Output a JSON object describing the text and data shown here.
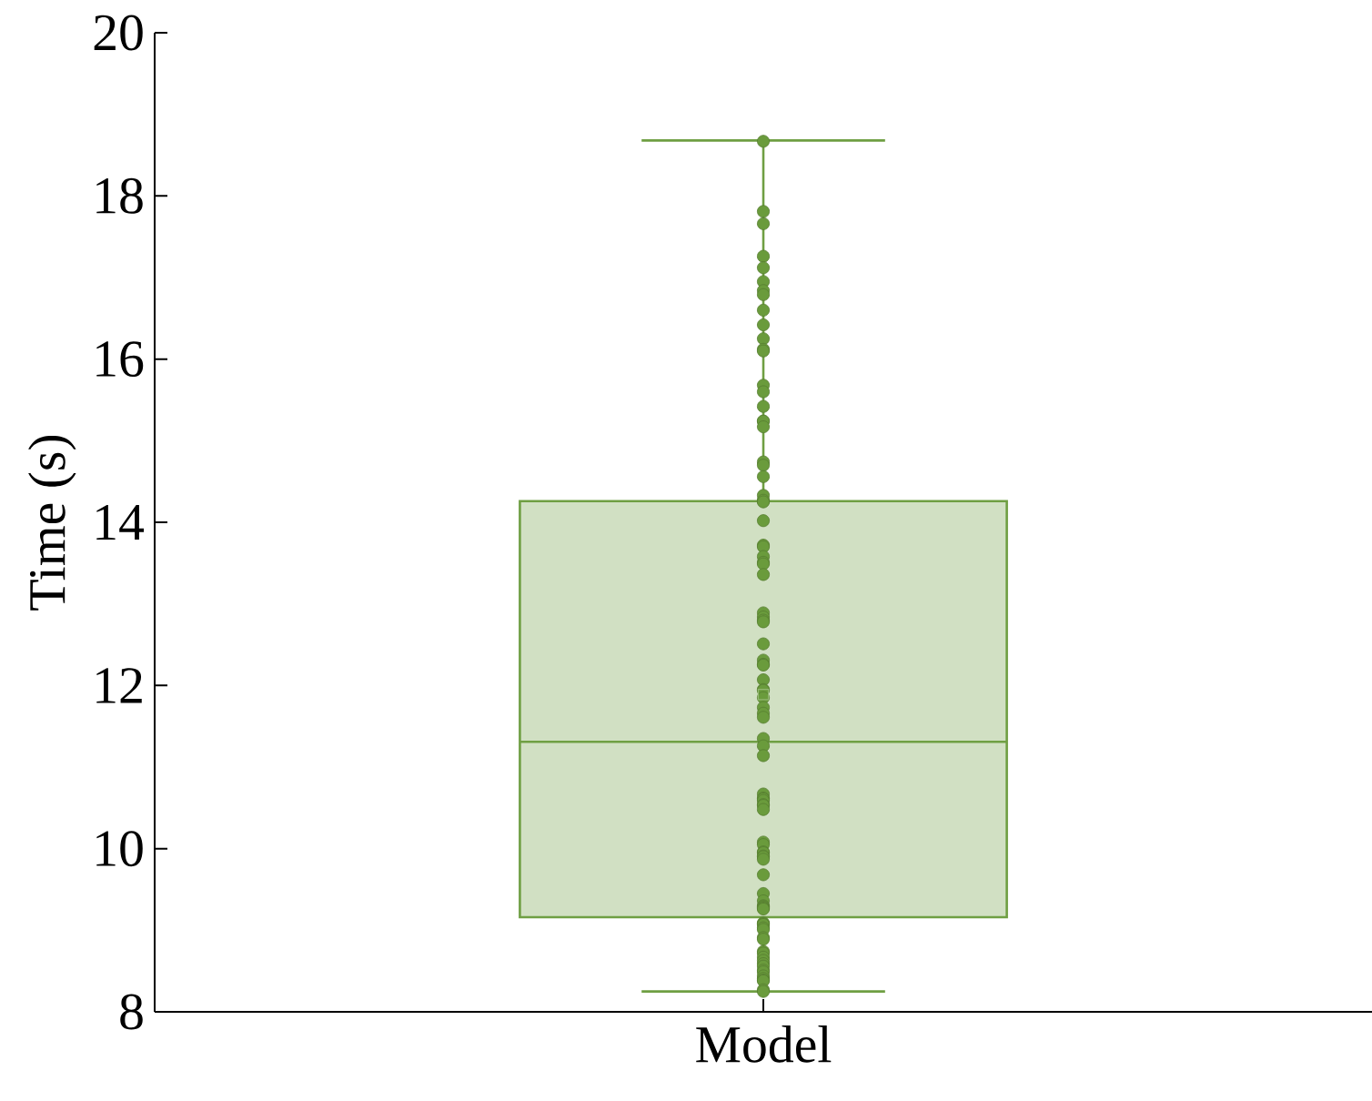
{
  "chart_data": {
    "type": "box",
    "ylabel": "Time (s)",
    "categories": [
      "Model"
    ],
    "ylim": [
      8,
      20
    ],
    "yticks": [
      8,
      10,
      12,
      14,
      16,
      18,
      20
    ],
    "series": [
      {
        "color": "#6f9f43",
        "boxes": [
          {
            "low": 8.25,
            "q1": 9.16,
            "median": 11.31,
            "q3": 14.26,
            "high": 18.68,
            "mean": 11.89
          }
        ]
      },
      {
        "type": "scatter",
        "color": "#6a9b3c",
        "marker": "circle",
        "x": [
          "Model",
          "Model",
          "Model",
          "Model",
          "Model",
          "Model",
          "Model",
          "Model",
          "Model",
          "Model",
          "Model",
          "Model",
          "Model",
          "Model",
          "Model",
          "Model",
          "Model",
          "Model",
          "Model",
          "Model",
          "Model",
          "Model",
          "Model",
          "Model",
          "Model",
          "Model",
          "Model",
          "Model",
          "Model",
          "Model",
          "Model",
          "Model",
          "Model",
          "Model",
          "Model",
          "Model",
          "Model",
          "Model",
          "Model",
          "Model",
          "Model",
          "Model",
          "Model",
          "Model",
          "Model",
          "Model",
          "Model",
          "Model",
          "Model",
          "Model",
          "Model",
          "Model",
          "Model",
          "Model",
          "Model",
          "Model",
          "Model",
          "Model",
          "Model",
          "Model",
          "Model",
          "Model",
          "Model",
          "Model",
          "Model",
          "Model",
          "Model",
          "Model",
          "Model",
          "Model",
          "Model",
          "Model",
          "Model",
          "Model",
          "Model",
          "Model",
          "Model",
          "Model",
          "Model",
          "Model",
          "Model",
          "Model",
          "Model",
          "Model",
          "Model",
          "Model",
          "Model",
          "Model",
          "Model",
          "Model",
          "Model",
          "Model",
          "Model",
          "Model"
        ],
        "values": [
          18.67,
          17.81,
          17.66,
          17.26,
          17.12,
          16.95,
          16.84,
          16.79,
          16.6,
          16.42,
          16.25,
          16.12,
          16.1,
          15.68,
          15.6,
          15.42,
          15.24,
          15.24,
          15.17,
          14.74,
          14.7,
          14.56,
          14.33,
          14.26,
          14.27,
          14.25,
          14.02,
          13.72,
          13.7,
          13.58,
          13.51,
          13.49,
          13.36,
          12.89,
          12.84,
          12.8,
          12.78,
          12.51,
          12.31,
          12.26,
          12.25,
          12.07,
          11.95,
          11.94,
          11.85,
          11.73,
          11.66,
          11.61,
          11.35,
          11.26,
          11.14,
          10.67,
          10.62,
          10.61,
          10.59,
          10.54,
          10.53,
          10.48,
          10.08,
          10.05,
          9.96,
          9.95,
          9.91,
          9.9,
          9.87,
          9.68,
          9.45,
          9.36,
          9.3,
          9.29,
          9.28,
          9.27,
          9.26,
          9.09,
          9.08,
          9.07,
          9.03,
          9.01,
          8.91,
          8.89,
          8.74,
          8.72,
          8.67,
          8.63,
          8.59,
          8.56,
          8.51,
          8.49,
          8.44,
          8.41,
          8.39,
          8.38,
          8.27,
          8.25
        ]
      }
    ]
  }
}
